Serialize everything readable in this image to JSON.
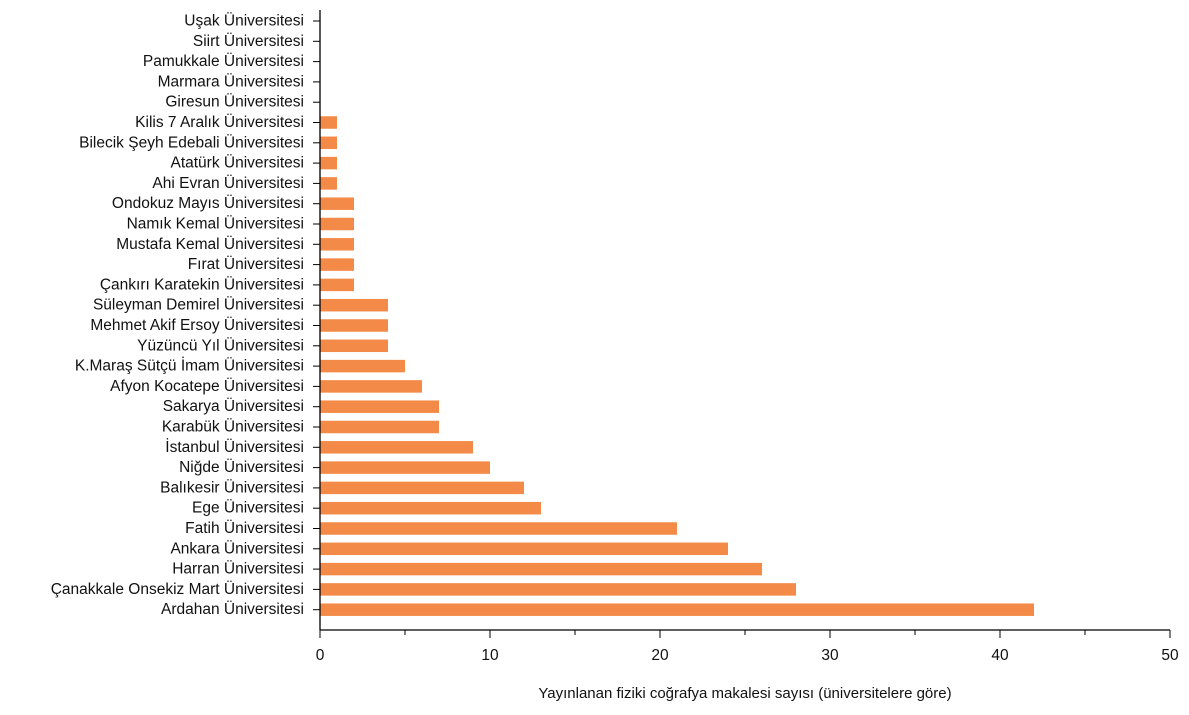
{
  "chart_data": {
    "type": "bar",
    "orientation": "horizontal",
    "title": "",
    "xlabel": "Yayınlanan fiziki coğrafya makalesi sayısı (üniversitelere göre)",
    "ylabel": "",
    "xlim": [
      0,
      50
    ],
    "x_ticks": [
      0,
      10,
      20,
      30,
      40,
      50
    ],
    "grid": false,
    "bar_color": "#F48A48",
    "categories": [
      "Uşak Üniversitesi",
      "Siirt Üniversitesi",
      "Pamukkale Üniversitesi",
      "Marmara Üniversitesi",
      "Giresun Üniversitesi",
      "Kilis 7 Aralık Üniversitesi",
      "Bilecik Şeyh Edebali Üniversitesi",
      "Atatürk Üniversitesi",
      "Ahi Evran Üniversitesi",
      "Ondokuz Mayıs Üniversitesi",
      "Namık Kemal Üniversitesi",
      "Mustafa Kemal Üniversitesi",
      "Fırat Üniversitesi",
      "Çankırı Karatekin Üniversitesi",
      "Süleyman Demirel Üniversitesi",
      "Mehmet Akif Ersoy Üniversitesi",
      "Yüzüncü Yıl Üniversitesi",
      "K.Maraş Sütçü İmam Üniversitesi",
      "Afyon Kocatepe Üniversitesi",
      "Sakarya Üniversitesi",
      "Karabük Üniversitesi",
      "İstanbul Üniversitesi",
      "Niğde Üniversitesi",
      "Balıkesir Üniversitesi",
      "Ege Üniversitesi",
      "Fatih Üniversitesi",
      "Ankara Üniversitesi",
      "Harran Üniversitesi",
      "Çanakkale Onsekiz Mart Üniversitesi",
      "Ardahan Üniversitesi"
    ],
    "values": [
      0,
      0,
      0,
      0,
      0,
      1,
      1,
      1,
      1,
      2,
      2,
      2,
      2,
      2,
      4,
      4,
      4,
      5,
      6,
      7,
      7,
      9,
      10,
      12,
      13,
      21,
      24,
      26,
      28,
      42
    ]
  }
}
